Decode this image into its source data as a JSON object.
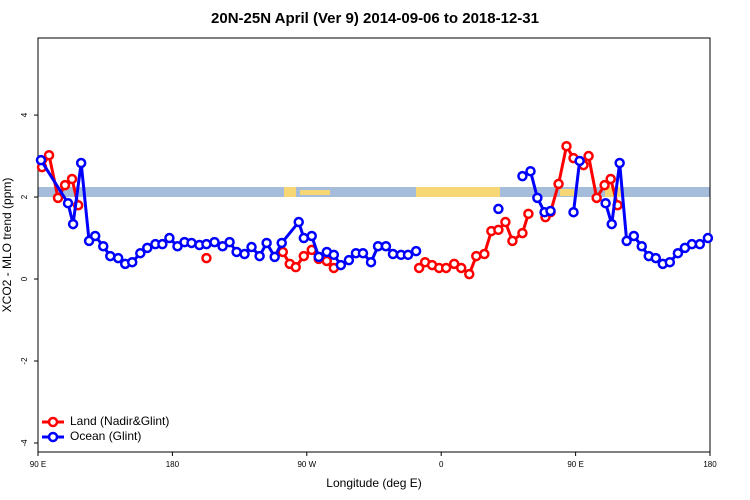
{
  "chart_data": {
    "type": "line",
    "title": "20N-25N April (Ver 9)   2014-09-06 to 2018-12-31",
    "x_label": "Longitude (deg E)",
    "y_label": "XCO2 - MLO trend (ppm)",
    "xlim": [
      90,
      540
    ],
    "xticks": [
      {
        "value": 90,
        "label": "90 E"
      },
      180,
      {
        "value": 270,
        "label": "90 W"
      },
      {
        "value": 360,
        "label": "0"
      },
      {
        "value": 450,
        "label": "90 E"
      },
      {
        "value": 540,
        "label": "180"
      }
    ],
    "ylim": [
      -4.22,
      5.88
    ],
    "yticks": [
      4,
      2,
      0,
      -2,
      -4
    ],
    "legend": "bottom-left",
    "series": [
      {
        "name": "Land (Nadir&Glint)",
        "color": "#ff0000",
        "x": [
          92.7,
          97.4,
          103.4,
          108.1,
          112.8,
          116.9,
          null,
          202.8,
          null,
          253.9,
          258.6,
          262.6,
          268.0,
          273.3,
          278.0,
          283.4,
          288.1,
          null,
          345.2,
          349.2,
          353.9,
          358.6,
          363.3,
          368.7,
          373.4,
          378.8,
          383.5,
          388.9,
          393.6,
          398.3,
          403.0,
          407.7,
          414.4,
          418.4,
          null,
          429.8,
          433.2,
          438.6,
          443.9,
          448.6,
          455.3,
          458.7,
          464.1,
          469.4,
          473.5,
          478.1
        ],
        "values": [
          2.73,
          3.02,
          1.98,
          2.29,
          2.44,
          1.8,
          null,
          0.51,
          null,
          0.66,
          0.37,
          0.29,
          0.56,
          0.71,
          0.49,
          0.44,
          0.27,
          null,
          0.27,
          0.41,
          0.34,
          0.27,
          0.27,
          0.37,
          0.27,
          0.12,
          0.56,
          0.61,
          1.17,
          1.2,
          1.39,
          0.93,
          1.12,
          1.59,
          null,
          1.51,
          1.63,
          2.32,
          3.24,
          2.95,
          2.78,
          3.0,
          1.98,
          2.29,
          2.44,
          1.8
        ]
      },
      {
        "name": "Ocean (Glint)",
        "color": "#0000ff",
        "x": [
          92.0,
          110.1,
          113.5,
          118.9,
          124.2,
          128.3,
          133.7,
          138.4,
          143.7,
          148.4,
          153.1,
          158.5,
          163.2,
          168.6,
          173.3,
          178.0,
          183.4,
          188.1,
          192.8,
          198.1,
          202.8,
          208.2,
          213.6,
          218.3,
          223.0,
          228.3,
          233.0,
          238.4,
          243.1,
          248.5,
          253.2,
          264.6,
          268.0,
          273.3,
          278.0,
          283.4,
          288.1,
          292.8,
          298.2,
          302.9,
          307.6,
          313.0,
          317.7,
          323.0,
          327.7,
          333.1,
          337.8,
          343.2,
          null,
          398.3,
          null,
          414.4,
          419.8,
          424.4,
          429.2,
          433.2,
          null,
          448.6,
          452.7,
          null,
          470.1,
          474.2,
          479.5,
          484.2,
          489.0,
          494.3,
          499.0,
          503.7,
          508.4,
          513.1,
          518.5,
          523.2,
          527.9,
          533.2,
          538.6
        ],
        "values": [
          2.9,
          1.85,
          1.34,
          2.83,
          0.93,
          1.05,
          0.8,
          0.56,
          0.51,
          0.37,
          0.41,
          0.63,
          0.76,
          0.85,
          0.85,
          1.0,
          0.8,
          0.9,
          0.88,
          0.83,
          0.85,
          0.9,
          0.8,
          0.9,
          0.66,
          0.61,
          0.78,
          0.56,
          0.88,
          0.54,
          0.88,
          1.39,
          1.0,
          1.05,
          0.54,
          0.66,
          0.59,
          0.34,
          0.46,
          0.63,
          0.63,
          0.41,
          0.8,
          0.8,
          0.61,
          0.59,
          0.59,
          0.68,
          null,
          1.71,
          null,
          2.51,
          2.63,
          1.98,
          1.63,
          1.66,
          null,
          1.63,
          2.88,
          null,
          1.85,
          1.34,
          2.83,
          0.93,
          1.05,
          0.8,
          0.56,
          0.51,
          0.37,
          0.41,
          0.63,
          0.76,
          0.85,
          0.85,
          1.0
        ]
      }
    ]
  }
}
